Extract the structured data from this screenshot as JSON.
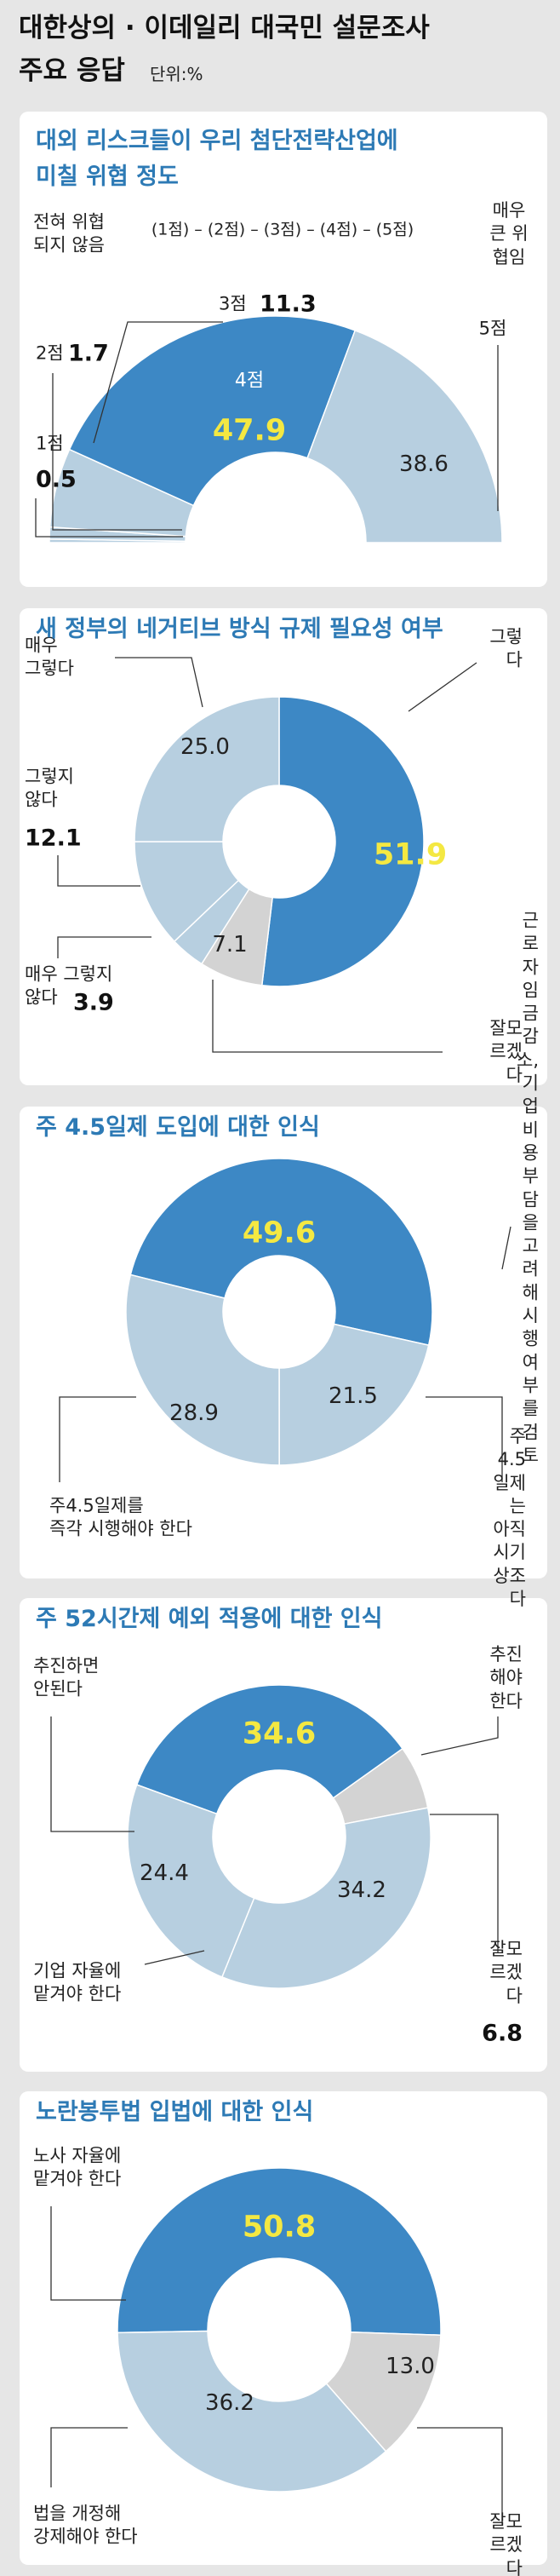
{
  "title": "대한상의 · 이데일리 대국민 설문조사\n주요 응답",
  "unit": "단위:%",
  "chart_data": [
    {
      "type": "half-donut",
      "title": "대외 리스크들이 우리 첨단전략산업에\n미칠 위협 정도",
      "scale": {
        "low": "전혀 위협\n되지 않음",
        "steps": "(1점) – (2점) – (3점) – (4점) – (5점)",
        "high": "매우\n큰 위협임"
      },
      "categories": [
        "1점",
        "2점",
        "3점",
        "4점",
        "5점"
      ],
      "values": [
        0.5,
        1.7,
        11.3,
        47.9,
        38.6
      ],
      "colors": [
        "#b7cfe0",
        "#b7cfe0",
        "#b7cfe0",
        "#3d88c5",
        "#b7cfe0"
      ]
    },
    {
      "type": "donut",
      "title": "새 정부의 네거티브 방식 규제 필요성 여부",
      "categories": [
        "그렇다",
        "잘모르겠다",
        "매우 그렇지\n않다",
        "그렇지\n않다",
        "매우\n그렇다"
      ],
      "values": [
        51.9,
        7.1,
        3.9,
        12.1,
        25
      ],
      "value_labels": [
        "51.9",
        "7.1",
        "3.9",
        "12.1",
        "25.0"
      ],
      "colors": [
        "#3d88c5",
        "#d3d3d3",
        "#b7cfe0",
        "#b7cfe0",
        "#b7cfe0"
      ]
    },
    {
      "type": "donut",
      "title": "주 4.5일제 도입에 대한 인식",
      "categories": [
        "근로자 임금감소, 기업 비용부담을 고려해 시행\n여부를 검토",
        "주4.5일제는\n아직 시기상조다",
        "주4.5일제를\n즉각 시행해야 한다"
      ],
      "values": [
        49.6,
        21.5,
        28.9
      ],
      "colors": [
        "#3d88c5",
        "#b7cfe0",
        "#b7cfe0"
      ]
    },
    {
      "type": "donut",
      "title": "주 52시간제 예외 적용에 대한 인식",
      "categories": [
        "추진\n해야한다",
        "잘모르겠다",
        "기업 자율에\n맡겨야 한다",
        "추진하면\n안된다"
      ],
      "values": [
        34.6,
        6.8,
        34.2,
        24.4
      ],
      "colors": [
        "#3d88c5",
        "#d3d3d3",
        "#b7cfe0",
        "#b7cfe0"
      ]
    },
    {
      "type": "donut",
      "title": "노란봉투법 입법에 대한 인식",
      "categories": [
        "노사 자율에\n맡겨야 한다",
        "잘모르겠다",
        "법을 개정해\n강제해야 한다"
      ],
      "values": [
        50.8,
        13,
        36.2
      ],
      "value_labels": [
        "50.8",
        "13.0",
        "36.2"
      ],
      "colors": [
        "#3d88c5",
        "#d3d3d3",
        "#b7cfe0"
      ]
    }
  ]
}
